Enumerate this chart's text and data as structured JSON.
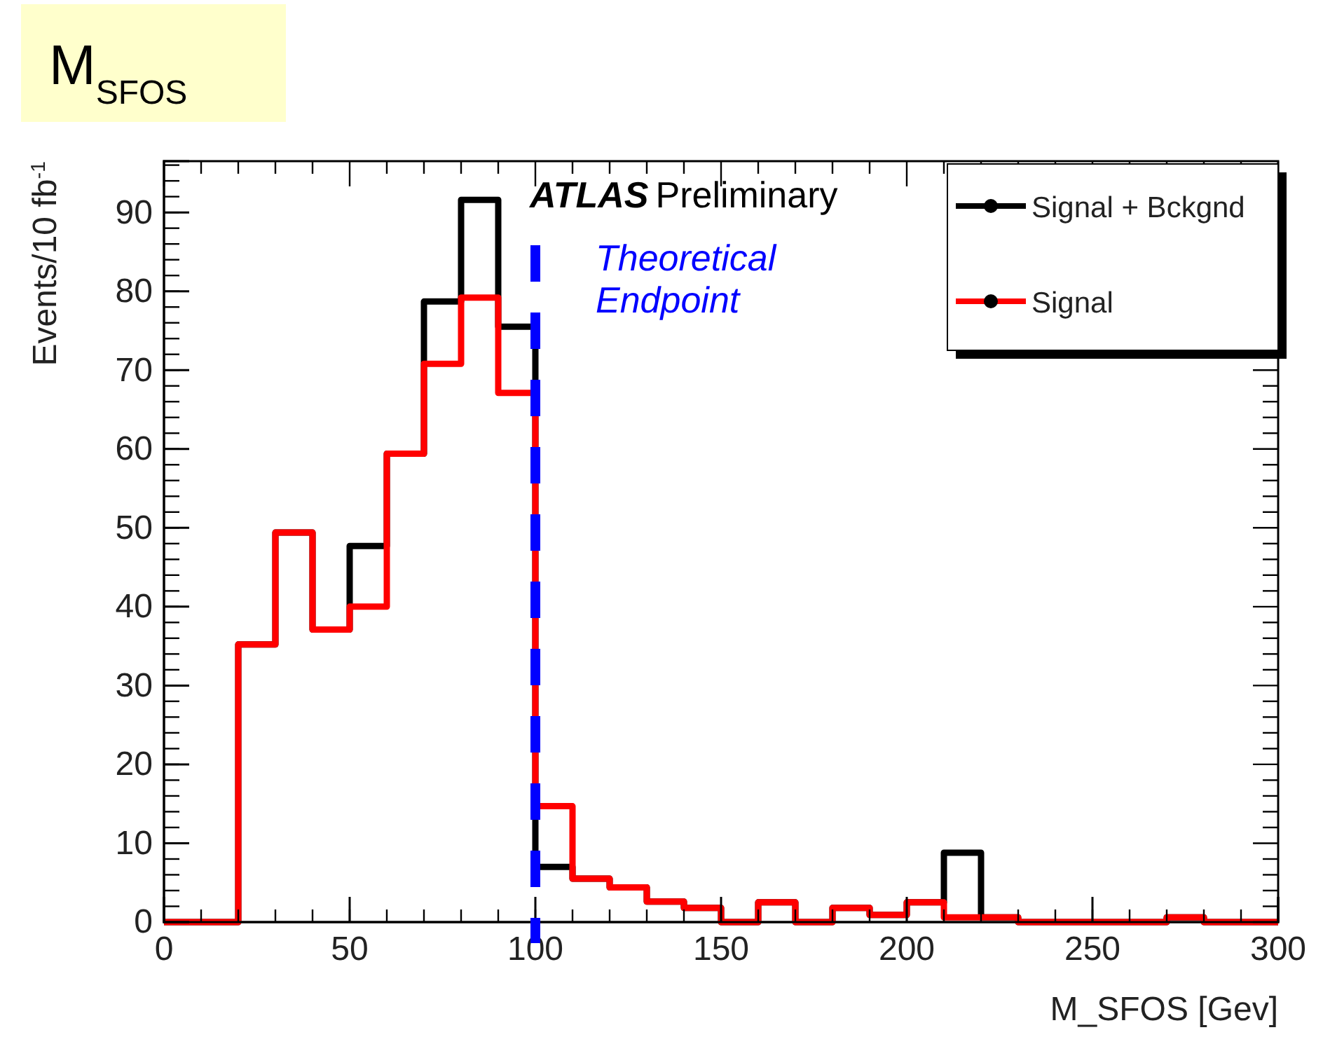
{
  "chart_data": {
    "type": "histogram",
    "title": "M$_{SFOS}$",
    "xlabel": "M_SFOS [Gev]",
    "ylabel": "Events/10 fb$^{-1}$",
    "bins": [
      0,
      10,
      20,
      30,
      40,
      50,
      60,
      70,
      80,
      90,
      100,
      110,
      120,
      130,
      140,
      150,
      160,
      170,
      180,
      190,
      200,
      210,
      220,
      230,
      240,
      250,
      260,
      270,
      280,
      290,
      300
    ],
    "series": [
      {
        "name": "Signal + Bckgnd",
        "color": "#000000",
        "values": [
          0,
          0,
          35.2,
          49.4,
          37.1,
          47.7,
          59.4,
          78.7,
          91.6,
          75.5,
          7,
          5.5,
          4.4,
          2.6,
          1.8,
          0,
          2.5,
          0,
          1.8,
          0.9,
          2.5,
          8.8,
          0.6,
          0,
          0,
          0,
          0,
          0.6,
          0,
          0
        ]
      },
      {
        "name": "Signal",
        "color": "#ff0000",
        "values": [
          0,
          0,
          35.2,
          49.4,
          37.1,
          40,
          59.4,
          70.8,
          79.2,
          67.1,
          14.7,
          5.5,
          4.4,
          2.6,
          1.8,
          0,
          2.5,
          0,
          1.8,
          0.9,
          2.5,
          0.6,
          0.6,
          0,
          0,
          0,
          0,
          0.6,
          0,
          0
        ]
      }
    ],
    "xlim": [
      0,
      300
    ],
    "xticks": [
      0,
      50,
      100,
      150,
      200,
      250,
      300
    ],
    "ylim": [
      0,
      96.5
    ],
    "yticks": [
      0,
      10,
      20,
      30,
      40,
      50,
      60,
      70,
      80,
      90
    ],
    "ref_lines": [
      {
        "axis": "x",
        "value": 100,
        "label": "Theoretical Endpoint",
        "color": "#0000ff",
        "line_style": "dashed"
      }
    ],
    "annotations": [
      "ATLAS",
      "Preliminary"
    ],
    "legend": "top right",
    "grid": false
  }
}
